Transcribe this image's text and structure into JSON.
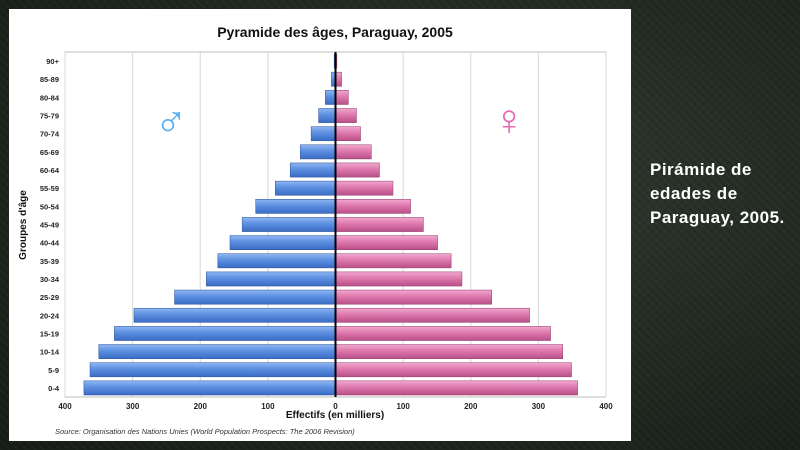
{
  "slide": {
    "caption": "Pirámide de edades de Paraguay, 2005."
  },
  "colors": {
    "male": "#5b8fe0",
    "female": "#e07bb0",
    "male_symbol": "#5aaef0",
    "female_symbol": "#e86cb4",
    "grid": "#d8d8d8",
    "frame_bg": "#ffffff"
  },
  "chart_data": {
    "type": "bar",
    "orientation": "horizontal",
    "layout": "population-pyramid",
    "title": "Pyramide des âges, Paraguay, 2005",
    "xlabel": "Effectifs (en milliers)",
    "ylabel": "Groupes d'âge",
    "source": "Source: Organisation des Nations Unies (World Population Prospects: The 2006 Revision)",
    "xlim": [
      -400,
      400
    ],
    "x_ticks": [
      "400",
      "300",
      "200",
      "100",
      "0",
      "100",
      "200",
      "300",
      "400"
    ],
    "symbols": {
      "male": "♂",
      "female": "♀"
    },
    "grid": true,
    "categories": [
      "0-4",
      "5-9",
      "10-14",
      "15-19",
      "20-24",
      "25-29",
      "30-34",
      "35-39",
      "40-44",
      "45-49",
      "50-54",
      "55-59",
      "60-64",
      "65-69",
      "70-74",
      "75-79",
      "80-84",
      "85-89",
      "90+"
    ],
    "series": [
      {
        "key": "male",
        "values": [
          372,
          363,
          350,
          327,
          298,
          238,
          191,
          174,
          156,
          138,
          118,
          89,
          67,
          52,
          36,
          25,
          15,
          6,
          2
        ]
      },
      {
        "key": "female",
        "values": [
          358,
          349,
          336,
          318,
          287,
          231,
          187,
          171,
          151,
          130,
          111,
          85,
          65,
          53,
          37,
          31,
          19,
          9,
          2
        ]
      }
    ]
  }
}
